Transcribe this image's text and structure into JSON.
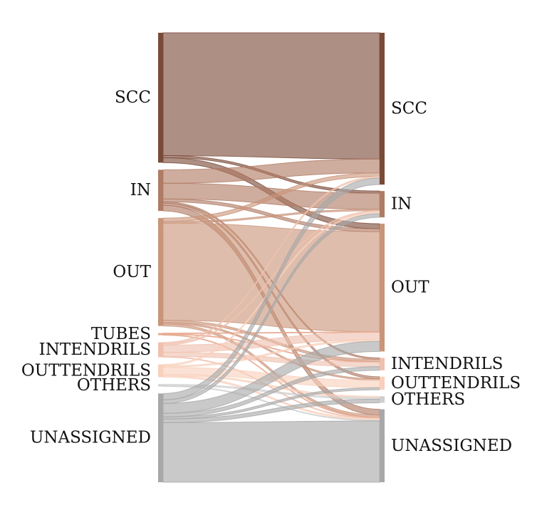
{
  "chart_data": {
    "type": "sankey",
    "title": "",
    "left_nodes": [
      {
        "label": "SCC",
        "value": 183,
        "color": "#7a4a38"
      },
      {
        "label": "IN",
        "value": 58,
        "color": "#b07b64"
      },
      {
        "label": "OUT",
        "value": 152,
        "color": "#c99479"
      },
      {
        "label": "TUBES",
        "value": 3,
        "color": "#e7a88f"
      },
      {
        "label": "INTENDRILS",
        "value": 21,
        "color": "#efc0ae"
      },
      {
        "label": "OUTTENDRILS",
        "value": 18,
        "color": "#f9d0bc"
      },
      {
        "label": "OTHERS",
        "value": 3,
        "color": "#cfcfcf"
      },
      {
        "label": "UNASSIGNED",
        "value": 125,
        "color": "#a8a8a8"
      }
    ],
    "right_nodes": [
      {
        "label": "SCC",
        "value": 208,
        "color": "#7a4a38"
      },
      {
        "label": "IN",
        "value": 36,
        "color": "#b07b64"
      },
      {
        "label": "OUT",
        "value": 175,
        "color": "#c99479"
      },
      {
        "label": "INTENDRILS",
        "value": 17,
        "color": "#efc0ae"
      },
      {
        "label": "OUTTENDRILS",
        "value": 18,
        "color": "#f9d0bc"
      },
      {
        "label": "OTHERS",
        "value": 9,
        "color": "#cfcfcf"
      },
      {
        "label": "UNASSIGNED",
        "value": 100,
        "color": "#a8a8a8"
      }
    ],
    "flows": [
      {
        "from": "SCC",
        "to": "SCC",
        "value": 173
      },
      {
        "from": "SCC",
        "to": "IN",
        "value": 3
      },
      {
        "from": "SCC",
        "to": "OUT",
        "value": 7
      },
      {
        "from": "IN",
        "to": "SCC",
        "value": 19
      },
      {
        "from": "IN",
        "to": "IN",
        "value": 22
      },
      {
        "from": "IN",
        "to": "OUT",
        "value": 4
      },
      {
        "from": "IN",
        "to": "INTENDRILS",
        "value": 2
      },
      {
        "from": "IN",
        "to": "OUTTENDRILS",
        "value": 3
      },
      {
        "from": "IN",
        "to": "UNASSIGNED",
        "value": 8
      },
      {
        "from": "OUT",
        "to": "SCC",
        "value": 5
      },
      {
        "from": "OUT",
        "to": "IN",
        "value": 2
      },
      {
        "from": "OUT",
        "to": "OUT",
        "value": 137
      },
      {
        "from": "OUT",
        "to": "INTENDRILS",
        "value": 3
      },
      {
        "from": "OUT",
        "to": "OUTTENDRILS",
        "value": 2
      },
      {
        "from": "OUT",
        "to": "UNASSIGNED",
        "value": 3
      },
      {
        "from": "TUBES",
        "to": "OUT",
        "value": 1
      },
      {
        "from": "TUBES",
        "to": "INTENDRILS",
        "value": 1
      },
      {
        "from": "TUBES",
        "to": "UNASSIGNED",
        "value": 1
      },
      {
        "from": "INTENDRILS",
        "to": "SCC",
        "value": 2
      },
      {
        "from": "INTENDRILS",
        "to": "IN",
        "value": 2
      },
      {
        "from": "INTENDRILS",
        "to": "OUT",
        "value": 10
      },
      {
        "from": "INTENDRILS",
        "to": "INTENDRILS",
        "value": 6
      },
      {
        "from": "INTENDRILS",
        "to": "UNASSIGNED",
        "value": 1
      },
      {
        "from": "OUTTENDRILS",
        "to": "IN",
        "value": 2
      },
      {
        "from": "OUTTENDRILS",
        "to": "OUT",
        "value": 2
      },
      {
        "from": "OUTTENDRILS",
        "to": "OUTTENDRILS",
        "value": 10
      },
      {
        "from": "OUTTENDRILS",
        "to": "OTHERS",
        "value": 2
      },
      {
        "from": "OUTTENDRILS",
        "to": "UNASSIGNED",
        "value": 2
      },
      {
        "from": "OTHERS",
        "to": "OTHERS",
        "value": 2
      },
      {
        "from": "OTHERS",
        "to": "UNASSIGNED",
        "value": 1
      },
      {
        "from": "UNASSIGNED",
        "to": "SCC",
        "value": 9
      },
      {
        "from": "UNASSIGNED",
        "to": "IN",
        "value": 5
      },
      {
        "from": "UNASSIGNED",
        "to": "OUT",
        "value": 14
      },
      {
        "from": "UNASSIGNED",
        "to": "INTENDRILS",
        "value": 5
      },
      {
        "from": "UNASSIGNED",
        "to": "OUTTENDRILS",
        "value": 3
      },
      {
        "from": "UNASSIGNED",
        "to": "OTHERS",
        "value": 5
      },
      {
        "from": "UNASSIGNED",
        "to": "UNASSIGNED",
        "value": 84
      }
    ]
  }
}
